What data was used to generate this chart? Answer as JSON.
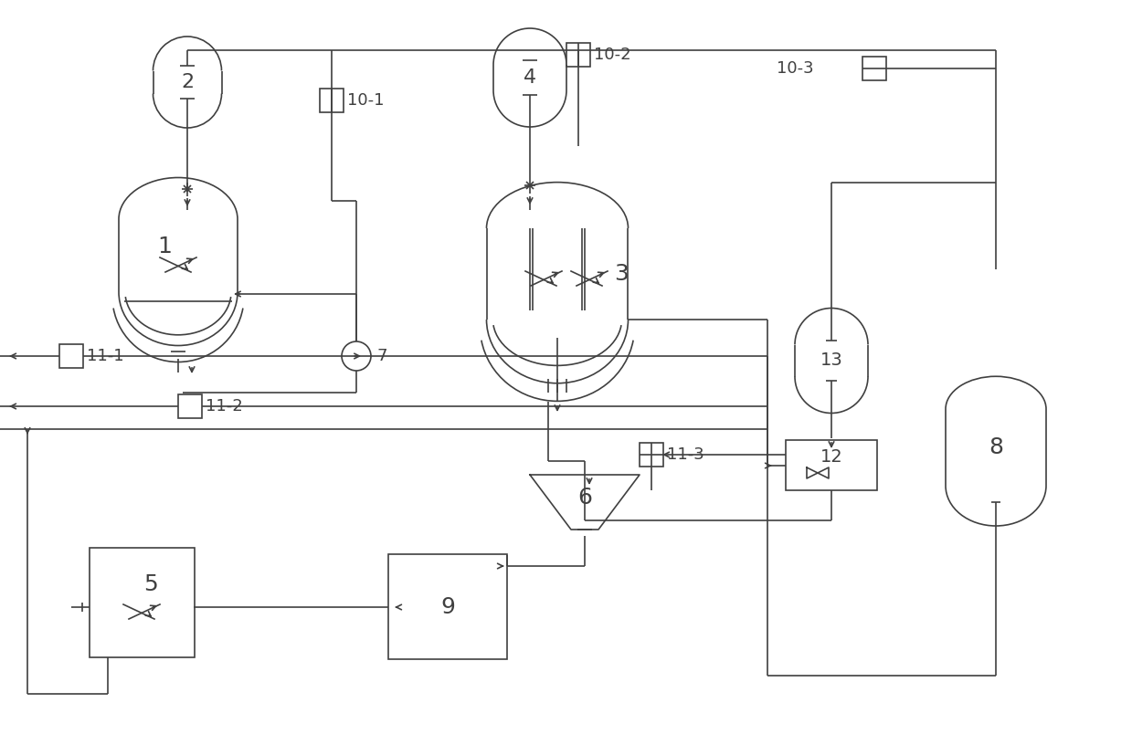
{
  "bg_color": "#ffffff",
  "line_color": "#404040",
  "title": "",
  "figsize": [
    12.39,
    8.16
  ],
  "dpi": 100
}
